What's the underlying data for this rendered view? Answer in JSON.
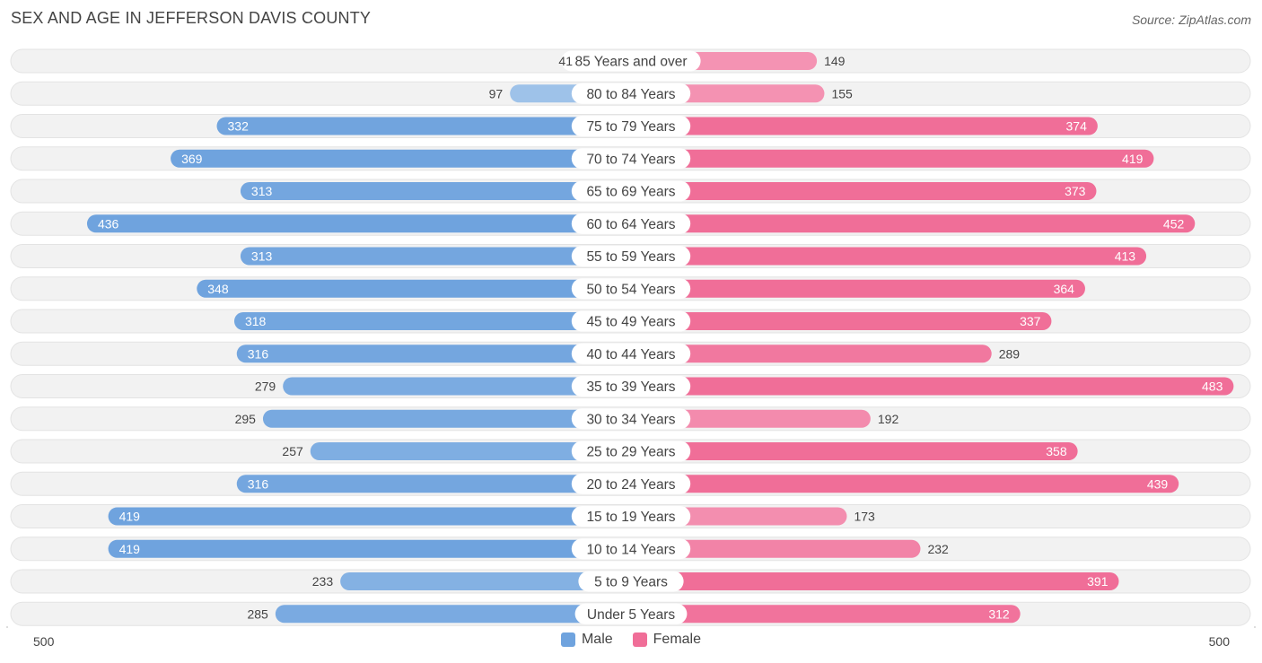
{
  "header": {
    "title": "SEX AND AGE IN JEFFERSON DAVIS COUNTY",
    "source": "Source: ZipAtlas.com"
  },
  "legend": {
    "male_label": "Male",
    "female_label": "Female"
  },
  "axis": {
    "left_label": "500",
    "right_label": "500"
  },
  "colors": {
    "male_strong": "#6fa3de",
    "male_light": "#a9c9ec",
    "female_strong": "#f06e98",
    "female_light": "#f6a8c2",
    "row_bg": "#f2f2f2",
    "row_border": "#e3e3e3"
  },
  "chart_data": {
    "type": "bar",
    "orientation": "horizontal-diverging",
    "title": "SEX AND AGE IN JEFFERSON DAVIS COUNTY",
    "xlim": [
      -500,
      500
    ],
    "categories": [
      "85 Years and over",
      "80 to 84 Years",
      "75 to 79 Years",
      "70 to 74 Years",
      "65 to 69 Years",
      "60 to 64 Years",
      "55 to 59 Years",
      "50 to 54 Years",
      "45 to 49 Years",
      "40 to 44 Years",
      "35 to 39 Years",
      "30 to 34 Years",
      "25 to 29 Years",
      "20 to 24 Years",
      "15 to 19 Years",
      "10 to 14 Years",
      "5 to 9 Years",
      "Under 5 Years"
    ],
    "series": [
      {
        "name": "Male",
        "values": [
          41,
          97,
          332,
          369,
          313,
          436,
          313,
          348,
          318,
          316,
          279,
          295,
          257,
          316,
          419,
          419,
          233,
          285
        ]
      },
      {
        "name": "Female",
        "values": [
          149,
          155,
          374,
          419,
          373,
          452,
          413,
          364,
          337,
          289,
          483,
          192,
          358,
          439,
          173,
          232,
          391,
          312
        ]
      }
    ],
    "legend_position": "bottom-center"
  }
}
